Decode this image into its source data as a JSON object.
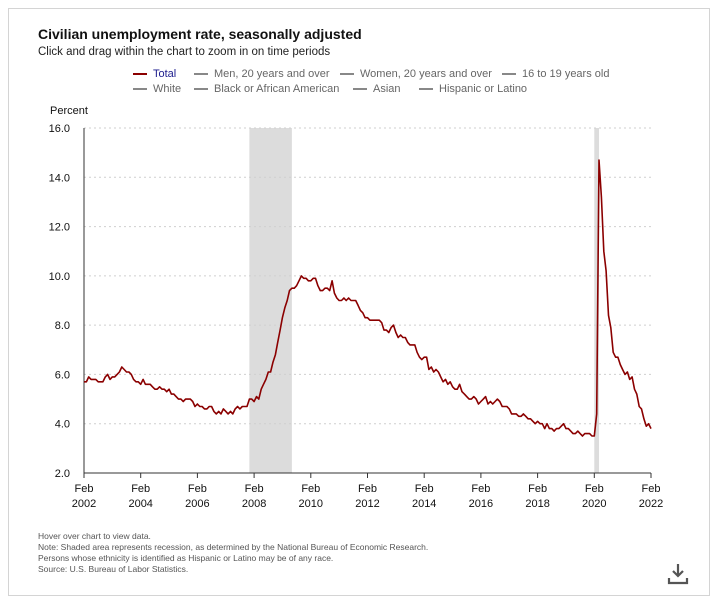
{
  "header": {
    "title": "Civilian unemployment rate, seasonally adjusted",
    "subtitle": "Click and drag within the chart to zoom in on time periods"
  },
  "legend": {
    "items": [
      {
        "label": "Total",
        "color": "#8b0000",
        "active": true
      },
      {
        "label": "Men, 20 years and over",
        "color": "#888888",
        "active": false
      },
      {
        "label": "Women, 20 years and over",
        "color": "#888888",
        "active": false
      },
      {
        "label": "16 to 19 years old",
        "color": "#888888",
        "active": false
      },
      {
        "label": "White",
        "color": "#888888",
        "active": false
      },
      {
        "label": "Black or African American",
        "color": "#888888",
        "active": false
      },
      {
        "label": "Asian",
        "color": "#888888",
        "active": false
      },
      {
        "label": "Hispanic or Latino",
        "color": "#888888",
        "active": false
      }
    ]
  },
  "notes": {
    "hover": "Hover over chart to view data.",
    "note1": "Note: Shaded area represents recession, as determined by the National Bureau of Economic Research.",
    "note2": "Persons whose ethnicity is identified as Hispanic or Latino may be of any race.",
    "source": "Source: U.S. Bureau of Labor Statistics."
  },
  "icons": {
    "download": "download-icon"
  },
  "chart_data": {
    "type": "line",
    "title": "Civilian unemployment rate, seasonally adjusted",
    "ylabel": "Percent",
    "xlabel": "",
    "ylim": [
      2.0,
      16.0
    ],
    "xlim": [
      "2002-02",
      "2022-02"
    ],
    "yticks": [
      "2.0",
      "4.0",
      "6.0",
      "8.0",
      "10.0",
      "12.0",
      "14.0",
      "16.0"
    ],
    "xticks": [
      {
        "month": "Feb",
        "year": "2002"
      },
      {
        "month": "Feb",
        "year": "2004"
      },
      {
        "month": "Feb",
        "year": "2006"
      },
      {
        "month": "Feb",
        "year": "2008"
      },
      {
        "month": "Feb",
        "year": "2010"
      },
      {
        "month": "Feb",
        "year": "2012"
      },
      {
        "month": "Feb",
        "year": "2014"
      },
      {
        "month": "Feb",
        "year": "2016"
      },
      {
        "month": "Feb",
        "year": "2018"
      },
      {
        "month": "Feb",
        "year": "2020"
      },
      {
        "month": "Feb",
        "year": "2022"
      }
    ],
    "grid": true,
    "recessions": [
      {
        "start": "2007-12",
        "end": "2009-06"
      },
      {
        "start": "2020-02",
        "end": "2020-04"
      }
    ],
    "series": [
      {
        "name": "Total",
        "color": "#8b0000",
        "points": [
          [
            "2002-02",
            5.7
          ],
          [
            "2002-03",
            5.7
          ],
          [
            "2002-04",
            5.9
          ],
          [
            "2002-05",
            5.8
          ],
          [
            "2002-06",
            5.8
          ],
          [
            "2002-07",
            5.8
          ],
          [
            "2002-08",
            5.7
          ],
          [
            "2002-09",
            5.7
          ],
          [
            "2002-10",
            5.7
          ],
          [
            "2002-11",
            5.9
          ],
          [
            "2002-12",
            6.0
          ],
          [
            "2003-01",
            5.8
          ],
          [
            "2003-02",
            5.9
          ],
          [
            "2003-03",
            5.9
          ],
          [
            "2003-04",
            6.0
          ],
          [
            "2003-05",
            6.1
          ],
          [
            "2003-06",
            6.3
          ],
          [
            "2003-07",
            6.2
          ],
          [
            "2003-08",
            6.1
          ],
          [
            "2003-09",
            6.1
          ],
          [
            "2003-10",
            6.0
          ],
          [
            "2003-11",
            5.8
          ],
          [
            "2003-12",
            5.7
          ],
          [
            "2004-01",
            5.7
          ],
          [
            "2004-02",
            5.6
          ],
          [
            "2004-03",
            5.8
          ],
          [
            "2004-04",
            5.6
          ],
          [
            "2004-05",
            5.6
          ],
          [
            "2004-06",
            5.6
          ],
          [
            "2004-07",
            5.5
          ],
          [
            "2004-08",
            5.4
          ],
          [
            "2004-09",
            5.4
          ],
          [
            "2004-10",
            5.5
          ],
          [
            "2004-11",
            5.4
          ],
          [
            "2004-12",
            5.4
          ],
          [
            "2005-01",
            5.3
          ],
          [
            "2005-02",
            5.4
          ],
          [
            "2005-03",
            5.2
          ],
          [
            "2005-04",
            5.2
          ],
          [
            "2005-05",
            5.1
          ],
          [
            "2005-06",
            5.0
          ],
          [
            "2005-07",
            5.0
          ],
          [
            "2005-08",
            4.9
          ],
          [
            "2005-09",
            5.0
          ],
          [
            "2005-10",
            5.0
          ],
          [
            "2005-11",
            5.0
          ],
          [
            "2005-12",
            4.9
          ],
          [
            "2006-01",
            4.7
          ],
          [
            "2006-02",
            4.8
          ],
          [
            "2006-03",
            4.7
          ],
          [
            "2006-04",
            4.7
          ],
          [
            "2006-05",
            4.6
          ],
          [
            "2006-06",
            4.6
          ],
          [
            "2006-07",
            4.7
          ],
          [
            "2006-08",
            4.7
          ],
          [
            "2006-09",
            4.5
          ],
          [
            "2006-10",
            4.4
          ],
          [
            "2006-11",
            4.5
          ],
          [
            "2006-12",
            4.4
          ],
          [
            "2007-01",
            4.6
          ],
          [
            "2007-02",
            4.5
          ],
          [
            "2007-03",
            4.4
          ],
          [
            "2007-04",
            4.5
          ],
          [
            "2007-05",
            4.4
          ],
          [
            "2007-06",
            4.6
          ],
          [
            "2007-07",
            4.7
          ],
          [
            "2007-08",
            4.6
          ],
          [
            "2007-09",
            4.7
          ],
          [
            "2007-10",
            4.7
          ],
          [
            "2007-11",
            4.7
          ],
          [
            "2007-12",
            5.0
          ],
          [
            "2008-01",
            5.0
          ],
          [
            "2008-02",
            4.9
          ],
          [
            "2008-03",
            5.1
          ],
          [
            "2008-04",
            5.0
          ],
          [
            "2008-05",
            5.4
          ],
          [
            "2008-06",
            5.6
          ],
          [
            "2008-07",
            5.8
          ],
          [
            "2008-08",
            6.1
          ],
          [
            "2008-09",
            6.1
          ],
          [
            "2008-10",
            6.5
          ],
          [
            "2008-11",
            6.8
          ],
          [
            "2008-12",
            7.3
          ],
          [
            "2009-01",
            7.8
          ],
          [
            "2009-02",
            8.3
          ],
          [
            "2009-03",
            8.7
          ],
          [
            "2009-04",
            9.0
          ],
          [
            "2009-05",
            9.4
          ],
          [
            "2009-06",
            9.5
          ],
          [
            "2009-07",
            9.5
          ],
          [
            "2009-08",
            9.6
          ],
          [
            "2009-09",
            9.8
          ],
          [
            "2009-10",
            10.0
          ],
          [
            "2009-11",
            9.9
          ],
          [
            "2009-12",
            9.9
          ],
          [
            "2010-01",
            9.8
          ],
          [
            "2010-02",
            9.8
          ],
          [
            "2010-03",
            9.9
          ],
          [
            "2010-04",
            9.9
          ],
          [
            "2010-05",
            9.6
          ],
          [
            "2010-06",
            9.4
          ],
          [
            "2010-07",
            9.4
          ],
          [
            "2010-08",
            9.5
          ],
          [
            "2010-09",
            9.5
          ],
          [
            "2010-10",
            9.4
          ],
          [
            "2010-11",
            9.8
          ],
          [
            "2010-12",
            9.3
          ],
          [
            "2011-01",
            9.1
          ],
          [
            "2011-02",
            9.0
          ],
          [
            "2011-03",
            9.0
          ],
          [
            "2011-04",
            9.1
          ],
          [
            "2011-05",
            9.0
          ],
          [
            "2011-06",
            9.1
          ],
          [
            "2011-07",
            9.0
          ],
          [
            "2011-08",
            9.0
          ],
          [
            "2011-09",
            9.0
          ],
          [
            "2011-10",
            8.8
          ],
          [
            "2011-11",
            8.6
          ],
          [
            "2011-12",
            8.5
          ],
          [
            "2012-01",
            8.3
          ],
          [
            "2012-02",
            8.3
          ],
          [
            "2012-03",
            8.2
          ],
          [
            "2012-04",
            8.2
          ],
          [
            "2012-05",
            8.2
          ],
          [
            "2012-06",
            8.2
          ],
          [
            "2012-07",
            8.2
          ],
          [
            "2012-08",
            8.1
          ],
          [
            "2012-09",
            7.8
          ],
          [
            "2012-10",
            7.8
          ],
          [
            "2012-11",
            7.7
          ],
          [
            "2012-12",
            7.9
          ],
          [
            "2013-01",
            8.0
          ],
          [
            "2013-02",
            7.7
          ],
          [
            "2013-03",
            7.5
          ],
          [
            "2013-04",
            7.6
          ],
          [
            "2013-05",
            7.5
          ],
          [
            "2013-06",
            7.5
          ],
          [
            "2013-07",
            7.3
          ],
          [
            "2013-08",
            7.2
          ],
          [
            "2013-09",
            7.2
          ],
          [
            "2013-10",
            7.2
          ],
          [
            "2013-11",
            6.9
          ],
          [
            "2013-12",
            6.7
          ],
          [
            "2014-01",
            6.6
          ],
          [
            "2014-02",
            6.7
          ],
          [
            "2014-03",
            6.7
          ],
          [
            "2014-04",
            6.2
          ],
          [
            "2014-05",
            6.3
          ],
          [
            "2014-06",
            6.1
          ],
          [
            "2014-07",
            6.2
          ],
          [
            "2014-08",
            6.1
          ],
          [
            "2014-09",
            5.9
          ],
          [
            "2014-10",
            5.7
          ],
          [
            "2014-11",
            5.8
          ],
          [
            "2014-12",
            5.6
          ],
          [
            "2015-01",
            5.7
          ],
          [
            "2015-02",
            5.5
          ],
          [
            "2015-03",
            5.4
          ],
          [
            "2015-04",
            5.4
          ],
          [
            "2015-05",
            5.6
          ],
          [
            "2015-06",
            5.3
          ],
          [
            "2015-07",
            5.2
          ],
          [
            "2015-08",
            5.1
          ],
          [
            "2015-09",
            5.0
          ],
          [
            "2015-10",
            5.0
          ],
          [
            "2015-11",
            5.1
          ],
          [
            "2015-12",
            5.0
          ],
          [
            "2016-01",
            4.8
          ],
          [
            "2016-02",
            4.9
          ],
          [
            "2016-03",
            5.0
          ],
          [
            "2016-04",
            5.1
          ],
          [
            "2016-05",
            4.8
          ],
          [
            "2016-06",
            4.9
          ],
          [
            "2016-07",
            4.8
          ],
          [
            "2016-08",
            4.9
          ],
          [
            "2016-09",
            5.0
          ],
          [
            "2016-10",
            4.9
          ],
          [
            "2016-11",
            4.7
          ],
          [
            "2016-12",
            4.7
          ],
          [
            "2017-01",
            4.7
          ],
          [
            "2017-02",
            4.6
          ],
          [
            "2017-03",
            4.4
          ],
          [
            "2017-04",
            4.4
          ],
          [
            "2017-05",
            4.4
          ],
          [
            "2017-06",
            4.3
          ],
          [
            "2017-07",
            4.3
          ],
          [
            "2017-08",
            4.4
          ],
          [
            "2017-09",
            4.3
          ],
          [
            "2017-10",
            4.2
          ],
          [
            "2017-11",
            4.2
          ],
          [
            "2017-12",
            4.1
          ],
          [
            "2018-01",
            4.0
          ],
          [
            "2018-02",
            4.1
          ],
          [
            "2018-03",
            4.0
          ],
          [
            "2018-04",
            4.0
          ],
          [
            "2018-05",
            3.8
          ],
          [
            "2018-06",
            4.0
          ],
          [
            "2018-07",
            3.8
          ],
          [
            "2018-08",
            3.8
          ],
          [
            "2018-09",
            3.7
          ],
          [
            "2018-10",
            3.8
          ],
          [
            "2018-11",
            3.8
          ],
          [
            "2018-12",
            3.9
          ],
          [
            "2019-01",
            4.0
          ],
          [
            "2019-02",
            3.8
          ],
          [
            "2019-03",
            3.8
          ],
          [
            "2019-04",
            3.7
          ],
          [
            "2019-05",
            3.6
          ],
          [
            "2019-06",
            3.6
          ],
          [
            "2019-07",
            3.7
          ],
          [
            "2019-08",
            3.6
          ],
          [
            "2019-09",
            3.5
          ],
          [
            "2019-10",
            3.6
          ],
          [
            "2019-11",
            3.6
          ],
          [
            "2019-12",
            3.6
          ],
          [
            "2020-01",
            3.5
          ],
          [
            "2020-02",
            3.5
          ],
          [
            "2020-03",
            4.4
          ],
          [
            "2020-04",
            14.7
          ],
          [
            "2020-05",
            13.2
          ],
          [
            "2020-06",
            11.0
          ],
          [
            "2020-07",
            10.2
          ],
          [
            "2020-08",
            8.4
          ],
          [
            "2020-09",
            7.9
          ],
          [
            "2020-10",
            6.9
          ],
          [
            "2020-11",
            6.7
          ],
          [
            "2020-12",
            6.7
          ],
          [
            "2021-01",
            6.4
          ],
          [
            "2021-02",
            6.2
          ],
          [
            "2021-03",
            6.0
          ],
          [
            "2021-04",
            6.1
          ],
          [
            "2021-05",
            5.8
          ],
          [
            "2021-06",
            5.9
          ],
          [
            "2021-07",
            5.4
          ],
          [
            "2021-08",
            5.2
          ],
          [
            "2021-09",
            4.7
          ],
          [
            "2021-10",
            4.6
          ],
          [
            "2021-11",
            4.2
          ],
          [
            "2021-12",
            3.9
          ],
          [
            "2022-01",
            4.0
          ],
          [
            "2022-02",
            3.8
          ]
        ]
      }
    ]
  }
}
